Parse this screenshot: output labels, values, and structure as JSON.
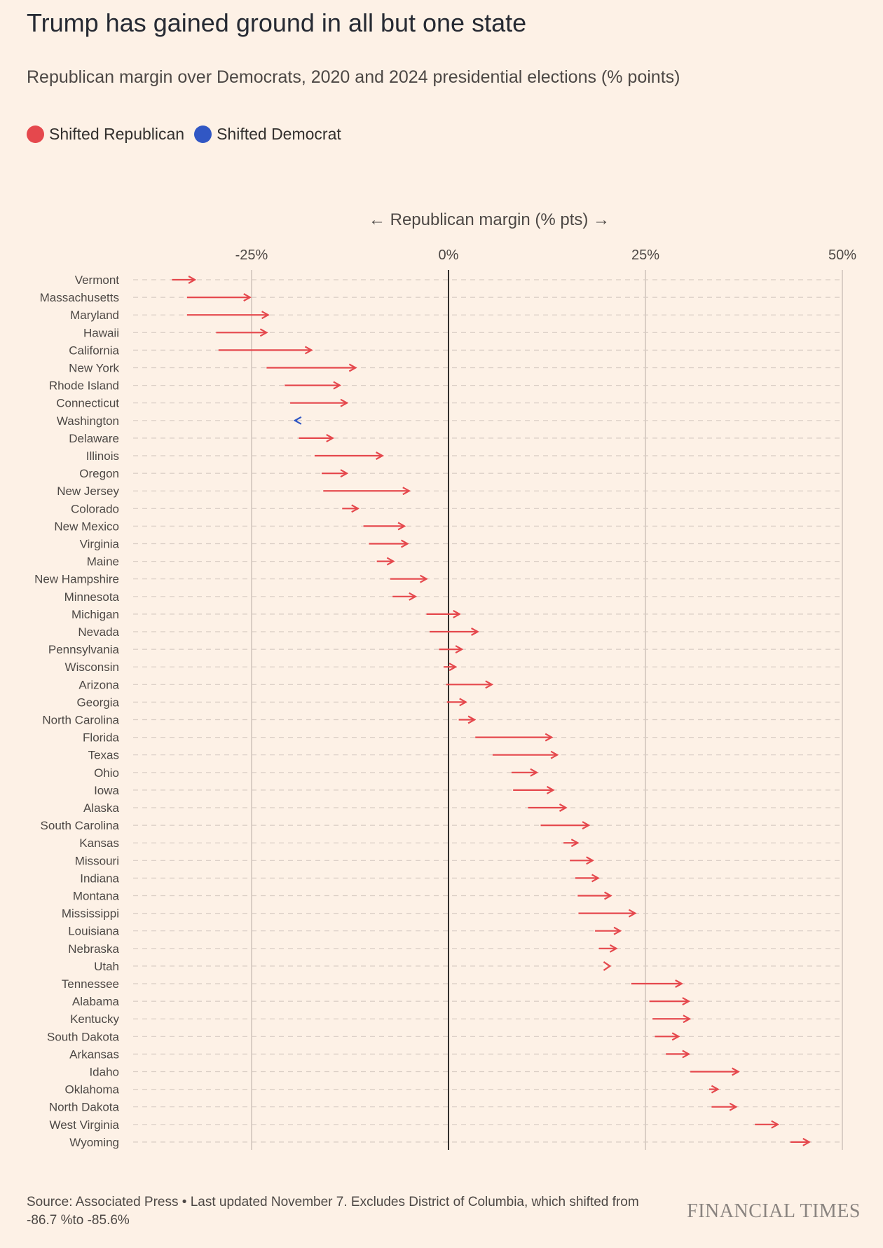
{
  "header": {
    "title": "Trump has gained ground in all but one state",
    "subtitle": "Republican margin over Democrats, 2020 and 2024 presidential elections (% points)"
  },
  "legend": {
    "republican_label": "Shifted Republican",
    "democrat_label": "Shifted Democrat"
  },
  "colors": {
    "republican": "#e5484d",
    "democrat": "#3157c4"
  },
  "footer": {
    "source": "Source: Associated Press • Last updated November 7. Excludes District of Columbia, which shifted from -86.7 %to -85.6%",
    "brand": "FINANCIAL TIMES"
  },
  "chart_data": {
    "type": "arrow",
    "title": "Trump has gained ground in all but one state",
    "axis_title": "← Republican margin (% pts) →",
    "xlim": [
      -40,
      50
    ],
    "ticks": [
      {
        "value": -25,
        "label": "-25%"
      },
      {
        "value": 0,
        "label": "0%"
      },
      {
        "value": 25,
        "label": "25%"
      },
      {
        "value": 50,
        "label": "50%"
      }
    ],
    "series": [
      {
        "name": "2020"
      },
      {
        "name": "2024"
      }
    ],
    "states": [
      {
        "name": "Vermont",
        "from": -35.1,
        "to": -32.2
      },
      {
        "name": "Massachusetts",
        "from": -33.2,
        "to": -25.2
      },
      {
        "name": "Maryland",
        "from": -33.2,
        "to": -22.9
      },
      {
        "name": "Hawaii",
        "from": -29.5,
        "to": -23.1
      },
      {
        "name": "California",
        "from": -29.2,
        "to": -17.4
      },
      {
        "name": "New York",
        "from": -23.1,
        "to": -11.8
      },
      {
        "name": "Rhode Island",
        "from": -20.8,
        "to": -13.8
      },
      {
        "name": "Connecticut",
        "from": -20.1,
        "to": -12.9
      },
      {
        "name": "Washington",
        "from": -19.2,
        "to": -19.5
      },
      {
        "name": "Delaware",
        "from": -19.0,
        "to": -14.7
      },
      {
        "name": "Illinois",
        "from": -17.0,
        "to": -8.4
      },
      {
        "name": "Oregon",
        "from": -16.1,
        "to": -12.9
      },
      {
        "name": "New Jersey",
        "from": -15.9,
        "to": -5.0
      },
      {
        "name": "Colorado",
        "from": -13.5,
        "to": -11.5
      },
      {
        "name": "New Mexico",
        "from": -10.8,
        "to": -5.6
      },
      {
        "name": "Virginia",
        "from": -10.1,
        "to": -5.2
      },
      {
        "name": "Maine",
        "from": -9.1,
        "to": -7.0
      },
      {
        "name": "New Hampshire",
        "from": -7.4,
        "to": -2.8
      },
      {
        "name": "Minnesota",
        "from": -7.1,
        "to": -4.2
      },
      {
        "name": "Michigan",
        "from": -2.8,
        "to": 1.4
      },
      {
        "name": "Nevada",
        "from": -2.4,
        "to": 3.7
      },
      {
        "name": "Pennsylvania",
        "from": -1.2,
        "to": 1.7
      },
      {
        "name": "Wisconsin",
        "from": -0.6,
        "to": 0.9
      },
      {
        "name": "Arizona",
        "from": -0.3,
        "to": 5.5
      },
      {
        "name": "Georgia",
        "from": -0.2,
        "to": 2.2
      },
      {
        "name": "North Carolina",
        "from": 1.3,
        "to": 3.3
      },
      {
        "name": "Florida",
        "from": 3.4,
        "to": 13.1
      },
      {
        "name": "Texas",
        "from": 5.6,
        "to": 13.8
      },
      {
        "name": "Ohio",
        "from": 8.0,
        "to": 11.2
      },
      {
        "name": "Iowa",
        "from": 8.2,
        "to": 13.3
      },
      {
        "name": "Alaska",
        "from": 10.1,
        "to": 14.9
      },
      {
        "name": "South Carolina",
        "from": 11.7,
        "to": 17.8
      },
      {
        "name": "Kansas",
        "from": 14.6,
        "to": 16.4
      },
      {
        "name": "Missouri",
        "from": 15.4,
        "to": 18.3
      },
      {
        "name": "Indiana",
        "from": 16.1,
        "to": 19.0
      },
      {
        "name": "Montana",
        "from": 16.4,
        "to": 20.6
      },
      {
        "name": "Mississippi",
        "from": 16.5,
        "to": 23.7
      },
      {
        "name": "Louisiana",
        "from": 18.6,
        "to": 21.8
      },
      {
        "name": "Nebraska",
        "from": 19.1,
        "to": 21.3
      },
      {
        "name": "Utah",
        "from": 20.5,
        "to": 20.5
      },
      {
        "name": "Tennessee",
        "from": 23.2,
        "to": 29.6
      },
      {
        "name": "Alabama",
        "from": 25.5,
        "to": 30.5
      },
      {
        "name": "Kentucky",
        "from": 25.9,
        "to": 30.6
      },
      {
        "name": "South Dakota",
        "from": 26.2,
        "to": 29.2
      },
      {
        "name": "Arkansas",
        "from": 27.6,
        "to": 30.5
      },
      {
        "name": "Idaho",
        "from": 30.7,
        "to": 36.8
      },
      {
        "name": "Oklahoma",
        "from": 33.1,
        "to": 34.2
      },
      {
        "name": "North Dakota",
        "from": 33.4,
        "to": 36.5
      },
      {
        "name": "West Virginia",
        "from": 38.9,
        "to": 41.8
      },
      {
        "name": "Wyoming",
        "from": 43.4,
        "to": 45.8
      }
    ]
  }
}
